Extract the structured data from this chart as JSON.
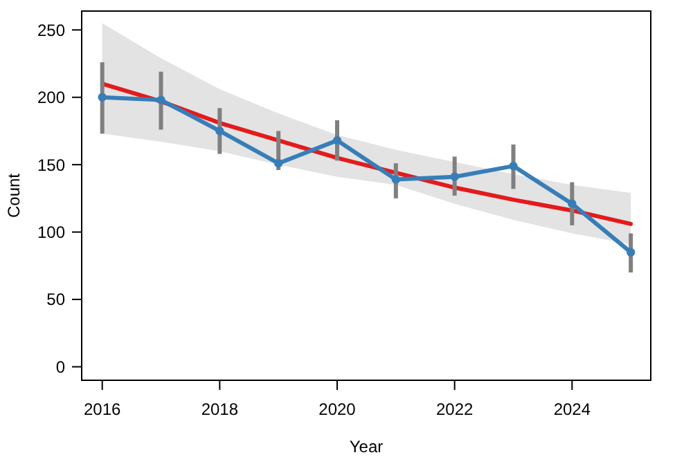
{
  "chart_data": {
    "type": "line",
    "xlabel": "Year",
    "ylabel": "Count",
    "x": [
      2016,
      2017,
      2018,
      2019,
      2020,
      2021,
      2022,
      2023,
      2024,
      2025
    ],
    "xlim": [
      2015.65,
      2025.34
    ],
    "ylim": [
      -10,
      264
    ],
    "xticks": [
      2016,
      2018,
      2020,
      2022,
      2024
    ],
    "yticks": [
      0,
      50,
      100,
      150,
      200,
      250
    ],
    "grid": false,
    "series": [
      {
        "color": "#e41a1c",
        "marker": "none",
        "values": [
          210,
          197,
          181,
          168,
          155,
          144,
          133,
          124,
          116,
          106
        ],
        "lower": [
          173,
          167,
          160,
          150,
          141,
          135,
          121,
          109,
          99,
          91
        ],
        "upper": [
          255,
          229,
          206,
          188,
          172,
          161,
          152,
          143,
          135,
          129
        ]
      },
      {
        "color": "#377eb8",
        "marker": "circle",
        "values": [
          200,
          198,
          175,
          151,
          168,
          139,
          141,
          149,
          121,
          85
        ],
        "errors": [
          [
            173,
            226
          ],
          [
            176,
            219
          ],
          [
            158,
            192
          ],
          [
            146,
            175
          ],
          [
            153,
            183
          ],
          [
            125,
            151
          ],
          [
            127,
            156
          ],
          [
            132,
            165
          ],
          [
            105,
            137
          ],
          [
            70,
            99
          ]
        ]
      }
    ]
  }
}
